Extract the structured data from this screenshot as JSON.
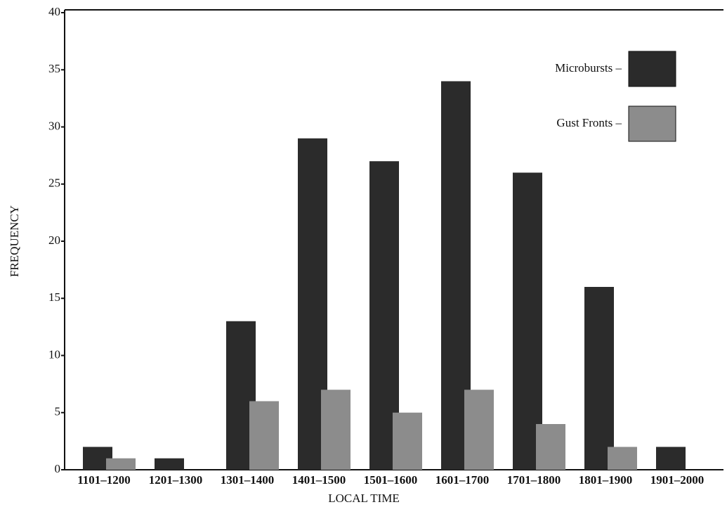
{
  "chart_data": {
    "type": "bar",
    "x_label": "LOCAL TIME",
    "y_label": "FREQUENCY",
    "categories": [
      "1101–1200",
      "1201–1300",
      "1301–1400",
      "1401–1500",
      "1501–1600",
      "1601–1700",
      "1701–1800",
      "1801–1900",
      "1901–2000"
    ],
    "series": [
      {
        "name": "Microbursts –",
        "color": "#2b2b2b",
        "values": [
          2,
          1,
          13,
          29,
          27,
          34,
          26,
          16,
          2
        ]
      },
      {
        "name": "Gust Fronts –",
        "color": "#8c8c8c",
        "values": [
          1,
          0,
          6,
          7,
          5,
          7,
          4,
          2,
          0
        ]
      }
    ],
    "ylim": [
      0,
      40
    ],
    "yticks": [
      0,
      5,
      10,
      15,
      20,
      25,
      30,
      35,
      40
    ],
    "legend": "upper right"
  }
}
